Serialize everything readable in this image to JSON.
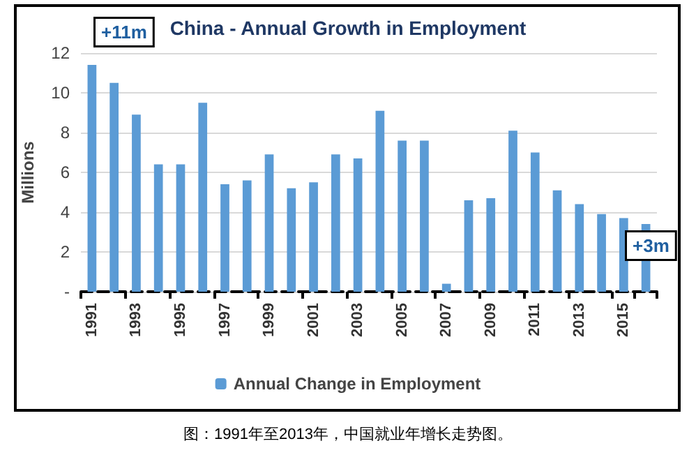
{
  "chart_data": {
    "type": "bar",
    "title": "China - Annual Growth in Employment",
    "ylabel": "Millions",
    "categories": [
      "1991",
      null,
      "1993",
      null,
      "1995",
      null,
      "1997",
      null,
      "1999",
      null,
      "2001",
      null,
      "2003",
      null,
      "2005",
      null,
      "2007",
      null,
      "2009",
      null,
      "2011",
      null,
      "2013",
      null,
      "2015",
      null
    ],
    "series": [
      {
        "name": "Annual Change in Employment",
        "color": "#5b9bd5",
        "values": [
          11.4,
          10.5,
          8.9,
          6.4,
          6.4,
          9.5,
          5.4,
          5.6,
          6.9,
          5.2,
          5.5,
          6.9,
          6.7,
          9.1,
          7.6,
          7.6,
          0.4,
          4.6,
          4.7,
          8.1,
          7.0,
          5.1,
          4.4,
          3.9,
          3.7,
          3.4
        ]
      }
    ],
    "ylim": [
      0,
      12
    ],
    "yticks": [
      {
        "value": 0,
        "label": "-"
      },
      2,
      4,
      6,
      8,
      10,
      12
    ],
    "grid": "y",
    "legend": "bottom",
    "annotations": [
      "+11m",
      "+3m",
      "图：1991年至2013年，中国就业年增长走势图。"
    ]
  }
}
